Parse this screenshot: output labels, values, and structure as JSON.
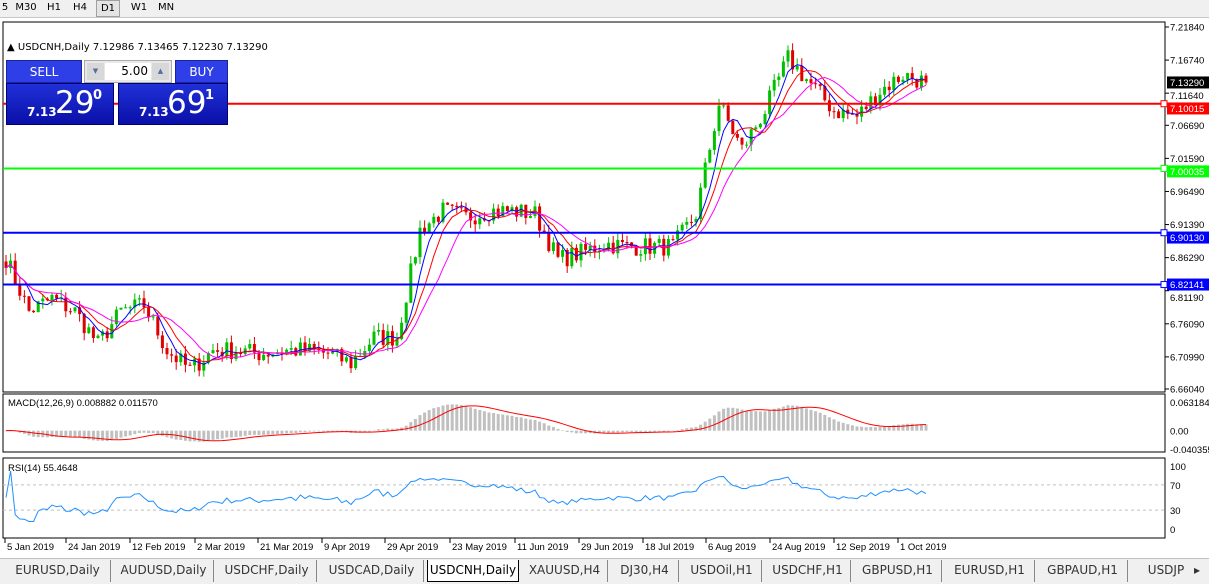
{
  "timeframes": [
    {
      "label": "5",
      "active": false
    },
    {
      "label": "M30",
      "active": false
    },
    {
      "label": "H1",
      "active": false
    },
    {
      "label": "H4",
      "active": false
    },
    {
      "label": "D1",
      "active": true
    },
    {
      "label": "W1",
      "active": false
    },
    {
      "label": "MN",
      "active": false
    }
  ],
  "chart_info": {
    "symbol": "USDCNH,Daily",
    "ohlc": "7.12986 7.13465 7.12230 7.13290"
  },
  "trade_panel": {
    "sell_label": "SELL",
    "buy_label": "BUY",
    "lot": "5.00",
    "sell_price": {
      "prefix": "7.13",
      "big": "29",
      "sup": "0"
    },
    "buy_price": {
      "prefix": "7.13",
      "big": "69",
      "sup": "1"
    }
  },
  "colors": {
    "bull": "#00c000",
    "bear": "#e00000",
    "ma_fast": "#0000ff",
    "ma_mid": "#ff0000",
    "ma_slow": "#ff00ff",
    "macd_hist": "#c0c0c0",
    "macd_signal": "#ff0000",
    "rsi": "#1e90ff"
  },
  "price_axis": {
    "ticks": [
      "7.21840",
      "7.16740",
      "7.11640",
      "7.06690",
      "7.01590",
      "6.96490",
      "6.91390",
      "6.86290",
      "6.81190",
      "6.76090",
      "6.70990",
      "6.66040"
    ],
    "range": [
      6.6604,
      7.2184
    ],
    "current_price": "7.13290"
  },
  "horizontal_lines": [
    {
      "price": 7.10015,
      "label": "7.10015",
      "color": "#ff0000"
    },
    {
      "price": 7.00035,
      "label": "7.00035",
      "color": "#00ff00"
    },
    {
      "price": 6.9013,
      "label": "6.90130",
      "color": "#0000ff"
    },
    {
      "price": 6.82141,
      "label": "6.82141",
      "color": "#0000ff"
    }
  ],
  "macd": {
    "title": "MACD(12,26,9) 0.008882 0.011570",
    "ticks": [
      "0.063184",
      "0.00",
      "-0.040355"
    ],
    "range": [
      -0.040355,
      0.063184
    ]
  },
  "rsi": {
    "title": "RSI(14) 55.4648",
    "ticks": [
      "100",
      "70",
      "30",
      "0"
    ],
    "levels": [
      70,
      30
    ]
  },
  "time_axis": [
    "5 Jan 2019",
    "24 Jan 2019",
    "12 Feb 2019",
    "2 Mar 2019",
    "21 Mar 2019",
    "9 Apr 2019",
    "29 Apr 2019",
    "23 May 2019",
    "11 Jun 2019",
    "29 Jun 2019",
    "18 Jul 2019",
    "6 Aug 2019",
    "24 Aug 2019",
    "12 Sep 2019",
    "1 Oct 2019"
  ],
  "chart_data": {
    "type": "candlestick",
    "close_every_5_bars": [
      6.862,
      6.78,
      6.8,
      6.78,
      6.73,
      6.78,
      6.79,
      6.72,
      6.69,
      6.72,
      6.72,
      6.715,
      6.72,
      6.72,
      6.715,
      6.7,
      6.74,
      6.74,
      6.905,
      6.935,
      6.925,
      6.935,
      6.935,
      6.93,
      6.86,
      6.87,
      6.885,
      6.88,
      6.88,
      6.88,
      6.93,
      7.1,
      7.03,
      7.09,
      7.17,
      7.13,
      7.09,
      7.08,
      7.12,
      7.145,
      7.1329
    ]
  },
  "tabs": [
    {
      "label": "EURUSD,Daily",
      "active": false
    },
    {
      "label": "AUDUSD,Daily",
      "active": false
    },
    {
      "label": "USDCHF,Daily",
      "active": false
    },
    {
      "label": "USDCAD,Daily",
      "active": false
    },
    {
      "label": "USDCNH,Daily",
      "active": true
    },
    {
      "label": "XAUUSD,H4",
      "active": false
    },
    {
      "label": "DJ30,H4",
      "active": false
    },
    {
      "label": "USDOil,H1",
      "active": false
    },
    {
      "label": "USDCHF,H1",
      "active": false
    },
    {
      "label": "GBPUSD,H1",
      "active": false
    },
    {
      "label": "EURUSD,H1",
      "active": false
    },
    {
      "label": "GBPAUD,H1",
      "active": false
    },
    {
      "label": "USDJP",
      "active": false
    }
  ]
}
